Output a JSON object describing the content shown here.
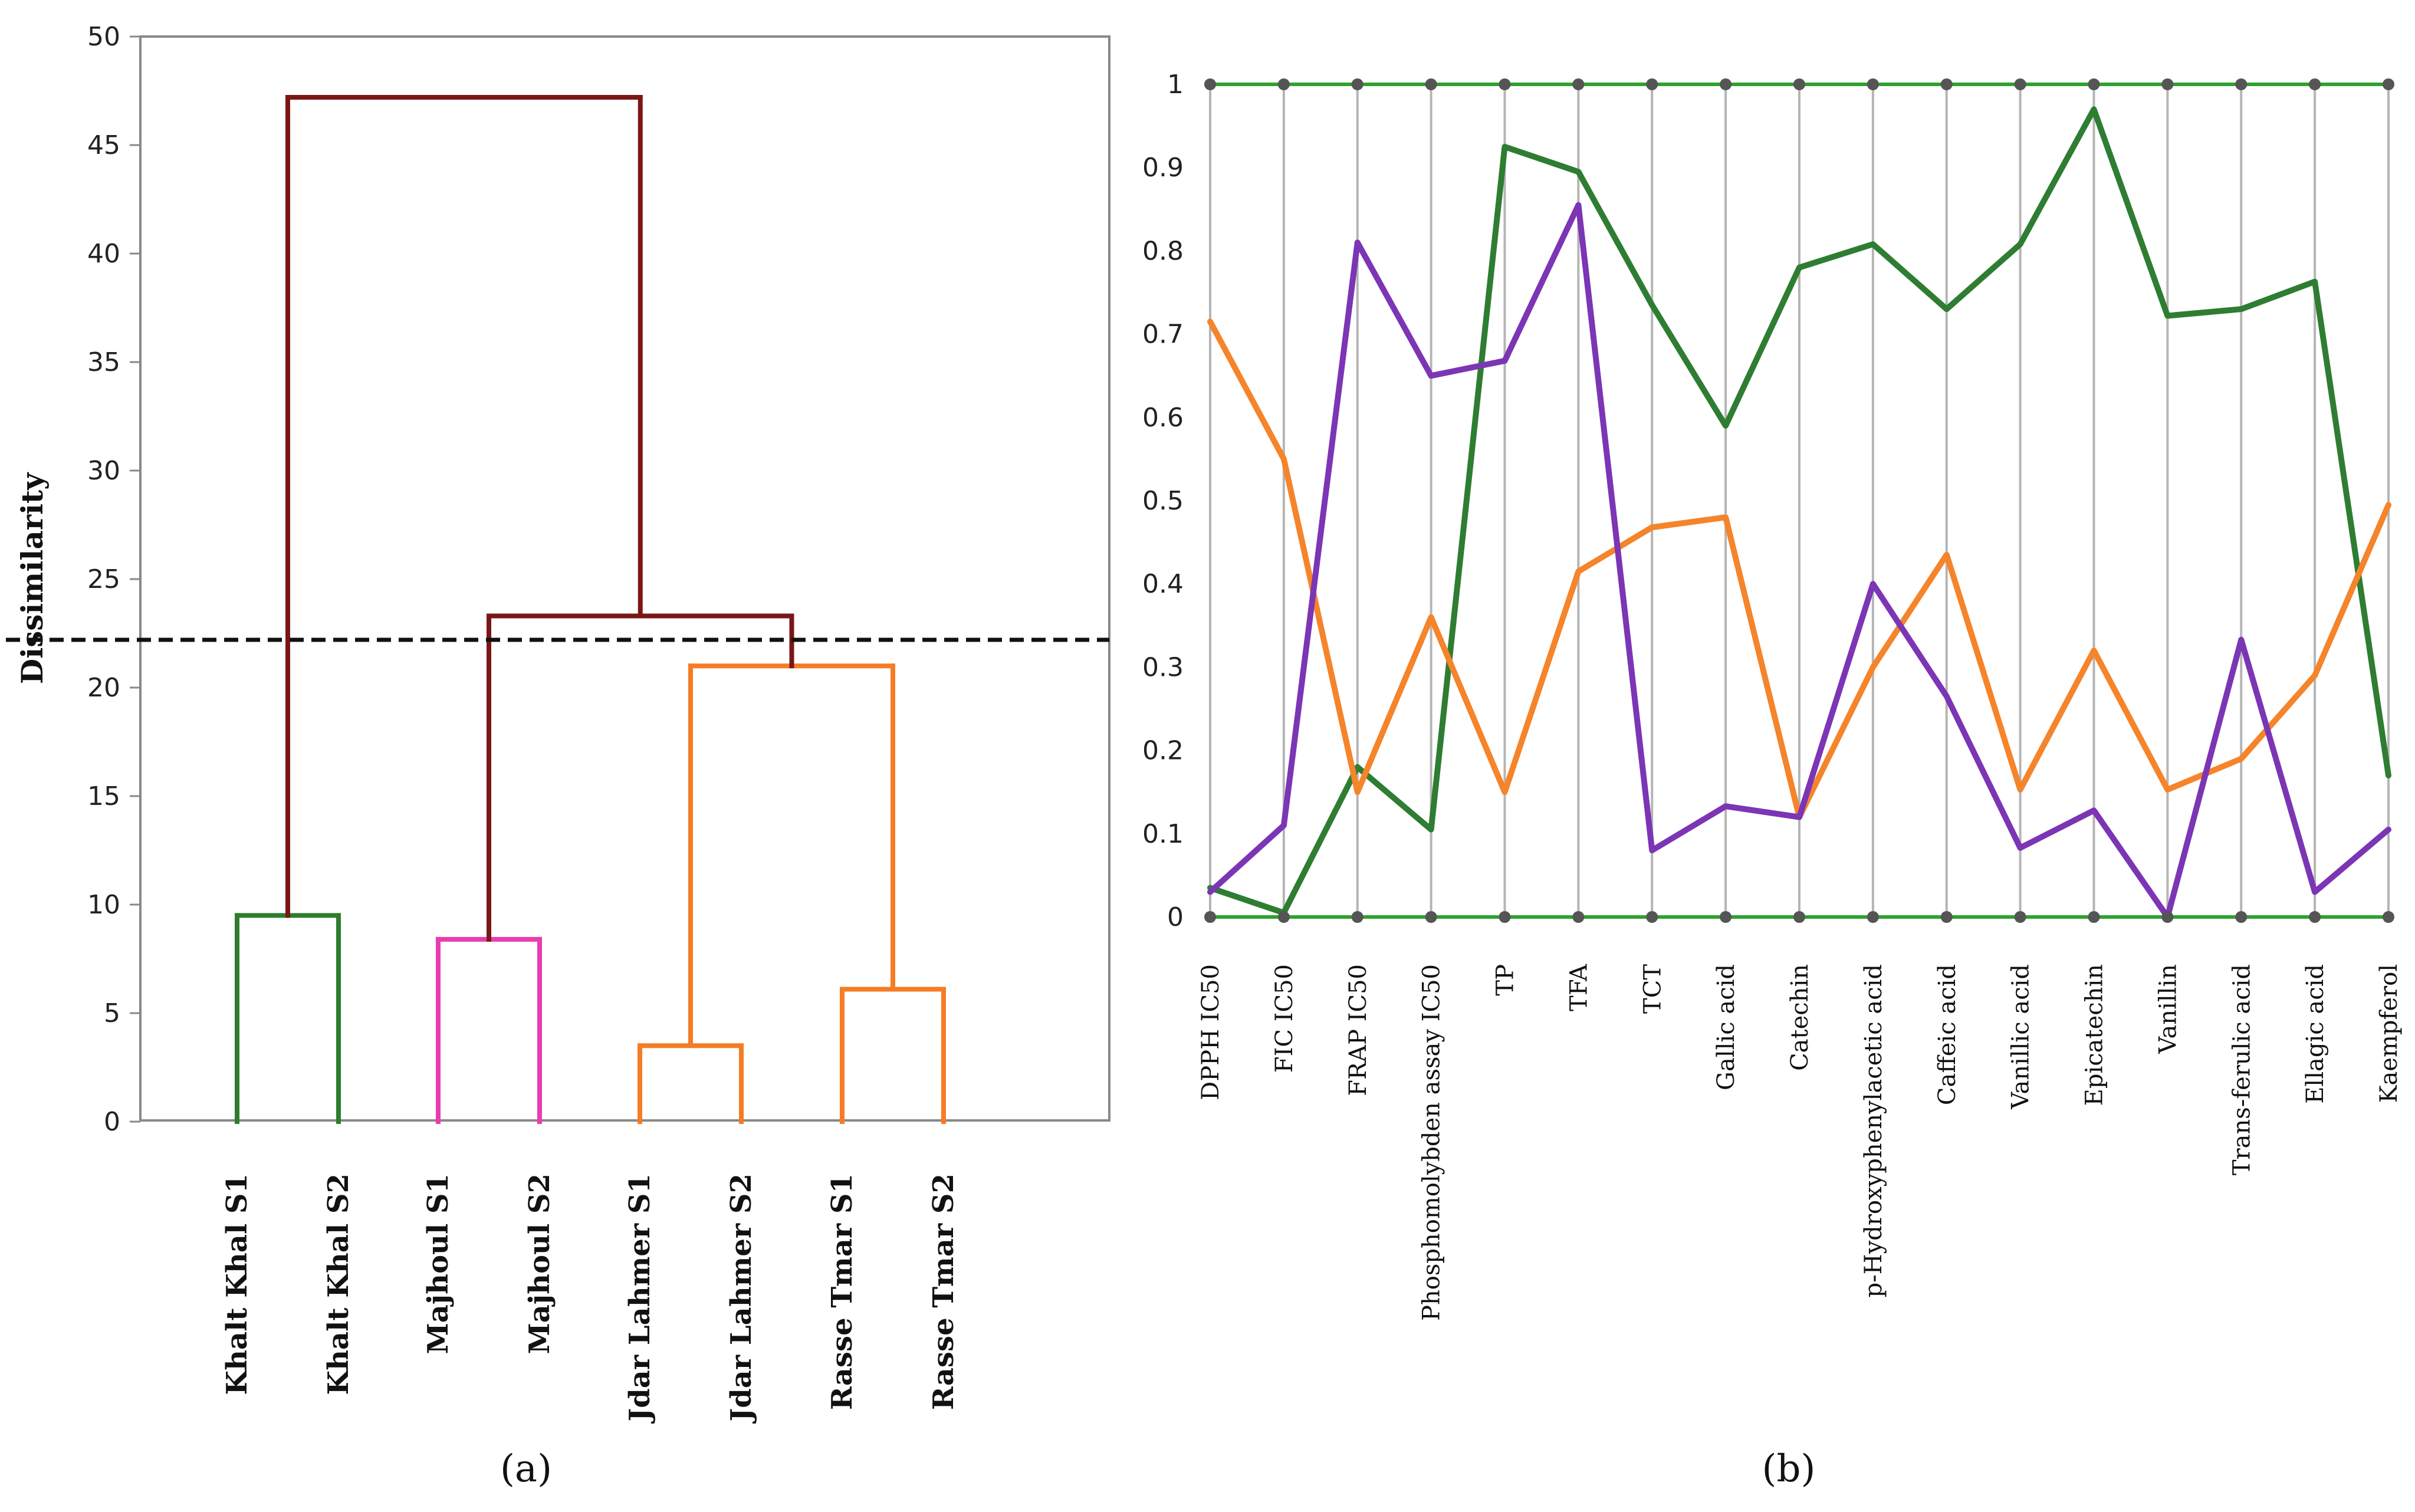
{
  "chart_data": [
    {
      "type": "dendrogram",
      "panel_label": "(a)",
      "ylabel": "Dissimilarity",
      "ylim": [
        0,
        50
      ],
      "yticks": [
        "0",
        "5",
        "10",
        "15",
        "20",
        "25",
        "30",
        "35",
        "40",
        "45",
        "50"
      ],
      "leaves": [
        "Khalt Khal S1",
        "Khalt Khal S2",
        "Majhoul S1",
        "Majhoul S2",
        "Jdar Lahmer S1",
        "Jdar Lahmer S2",
        "Rasse Tmar S1",
        "Rasse Tmar S2"
      ],
      "cutoff": 22.2,
      "merges": [
        {
          "a": 0,
          "b": 1,
          "height": 9.5,
          "color": "#2e7d2e"
        },
        {
          "a": 2,
          "b": 3,
          "height": 8.4,
          "color": "#e83cb0"
        },
        {
          "a": 4,
          "b": 5,
          "height": 3.5,
          "color": "#f57c24"
        },
        {
          "a": 6,
          "b": 7,
          "height": 6.1,
          "color": "#f57c24"
        },
        {
          "a": 10,
          "b": 11,
          "height": 21.0,
          "color": "#f57c24"
        },
        {
          "a": 9,
          "b": 12,
          "height": 23.3,
          "color": "#7b1616"
        },
        {
          "a": 8,
          "b": 13,
          "height": 47.2,
          "color": "#7b1616"
        }
      ],
      "link_colors": {
        "8": "#7b1616",
        "9": "#7b1616",
        "12": "#7b1616"
      }
    },
    {
      "type": "line",
      "panel_label": "(b)",
      "ylim": [
        0,
        1
      ],
      "yticks": [
        "0",
        "0.1",
        "0.2",
        "0.3",
        "0.4",
        "0.5",
        "0.6",
        "0.7",
        "0.8",
        "0.9",
        "1"
      ],
      "categories": [
        "DPPH IC50",
        "FIC IC50",
        "FRAP IC50",
        "Phosphomolybden assay IC50",
        "TP",
        "TFA",
        "TCT",
        "Gallic acid",
        "Catechin",
        "p-Hydroxyphenylacetic acid",
        "Caffeic acid",
        "Vanillic acid",
        "Epicatechin",
        "Vanillin",
        "Trans-ferulic acid",
        "Ellagic acid",
        "Kaempferol"
      ],
      "series": [
        {
          "name": "green",
          "color": "#2e7d32",
          "values": [
            0.035,
            0.005,
            0.18,
            0.105,
            0.925,
            0.895,
            0.735,
            0.59,
            0.78,
            0.808,
            0.73,
            0.808,
            0.97,
            0.722,
            0.73,
            0.763,
            0.17
          ]
        },
        {
          "name": "orange",
          "color": "#f5842a",
          "values": [
            0.715,
            0.55,
            0.15,
            0.36,
            0.15,
            0.415,
            0.468,
            0.48,
            0.12,
            0.3,
            0.435,
            0.153,
            0.32,
            0.153,
            0.19,
            0.29,
            0.495
          ]
        },
        {
          "name": "purple",
          "color": "#7b35b5",
          "values": [
            0.03,
            0.11,
            0.81,
            0.65,
            0.668,
            0.855,
            0.08,
            0.133,
            0.12,
            0.4,
            0.265,
            0.083,
            0.128,
            0.0,
            0.333,
            0.03,
            0.105
          ]
        }
      ],
      "axis_color": "#2ea12e"
    }
  ]
}
